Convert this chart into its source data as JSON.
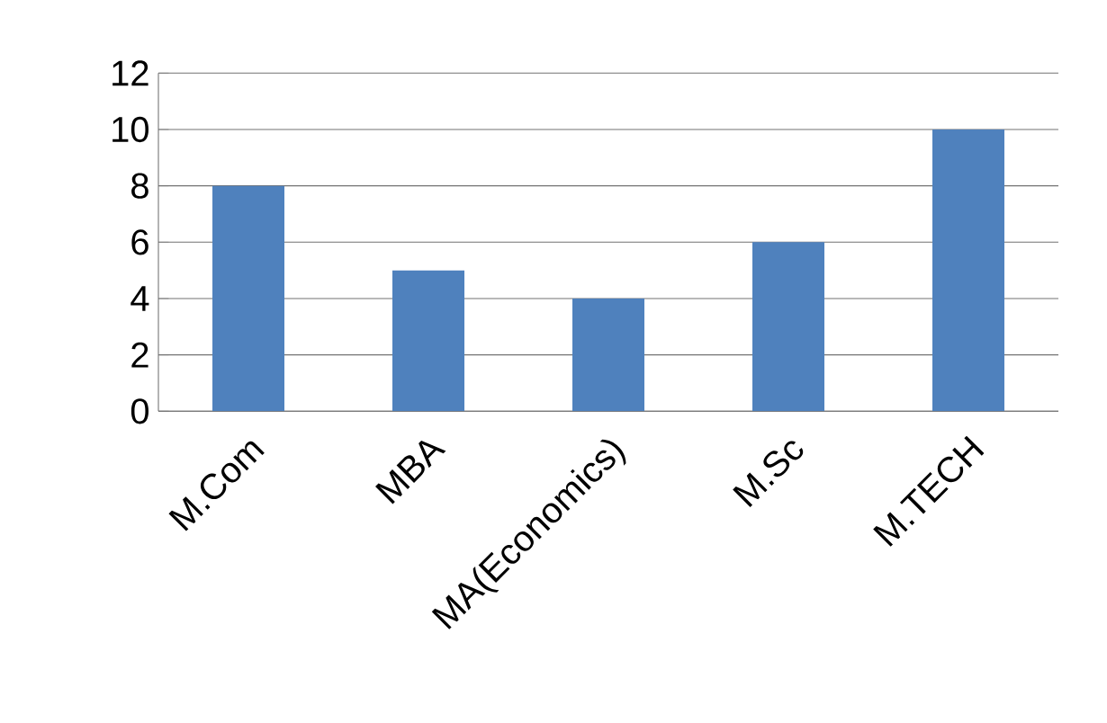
{
  "chart_data": {
    "type": "bar",
    "categories": [
      "M.Com",
      "MBA",
      "MA(Economics)",
      "M.Sc",
      "M.TECH"
    ],
    "values": [
      8,
      5,
      4,
      6,
      10
    ],
    "color": "#4f81bd",
    "ylim": [
      0,
      12
    ],
    "yticks": [
      0,
      2,
      4,
      6,
      8,
      10,
      12
    ],
    "grid": "y"
  }
}
